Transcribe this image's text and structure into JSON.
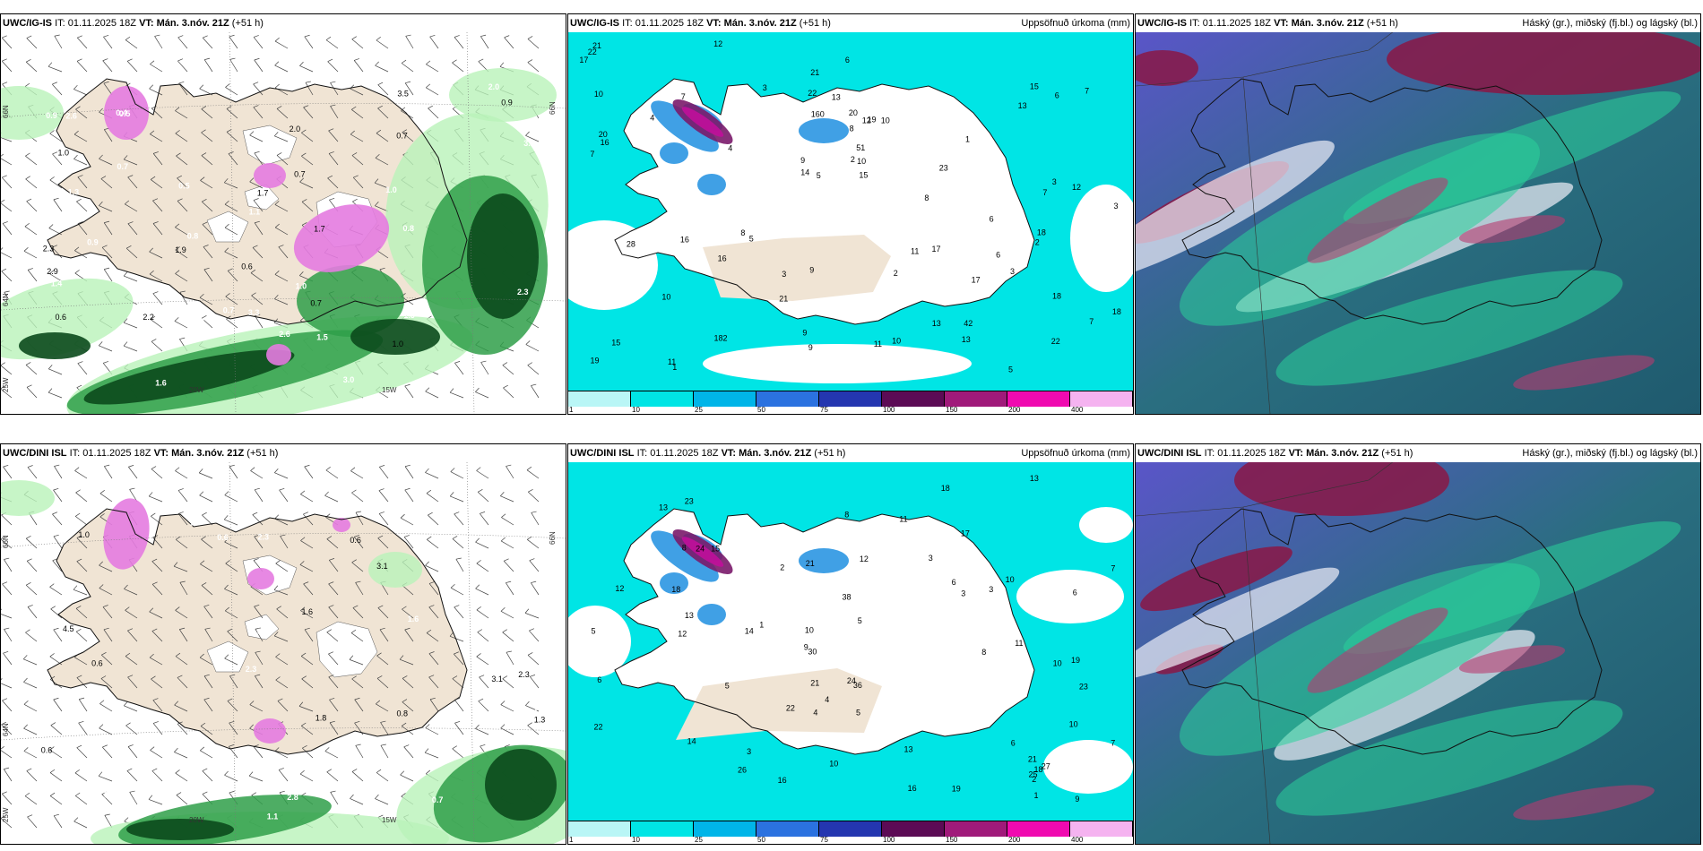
{
  "panels": [
    {
      "model": "UWC/IG-IS",
      "it_label": "IT:",
      "it": "01.11.2025 18Z",
      "vt_label": "VT:",
      "vt": "Mán. 3.nóv. 21Z",
      "lead": "(+51 h)",
      "right_title": "",
      "type": "wind-precip",
      "axis_labels": [
        "20W",
        "15W",
        "66N",
        "64N",
        "25W",
        "66N"
      ],
      "values": [
        "0.7",
        "0.6",
        "0.7",
        "2.0",
        "2.6",
        "1.0",
        "0.9",
        "0.6",
        "0.9",
        "0.7",
        "1.3",
        "0.5",
        "1.6",
        "1.0",
        "2.3",
        "1.7",
        "1.5",
        "0.8",
        "0.7",
        "2.0",
        "1.3",
        "0.5",
        "3.2",
        "2.2",
        "1.1",
        "2.9",
        "3.3",
        "1.0",
        "0.8",
        "3.0",
        "2.9",
        "2.6",
        "1.4",
        "3.5",
        "0.7",
        "0.9",
        "1.9",
        "2.3",
        "1.7",
        "2.2",
        "1.0",
        "0.4"
      ]
    },
    {
      "model": "UWC/IG-IS",
      "it_label": "IT:",
      "it": "01.11.2025 18Z",
      "vt_label": "VT:",
      "vt": "Mán. 3.nóv. 21Z",
      "lead": "(+51 h)",
      "right_title": "Uppsöfnuð úrkoma (mm)",
      "type": "accum",
      "values": [
        "14",
        "22",
        "21",
        "20",
        "18",
        "21",
        "10",
        "182",
        "16",
        "18",
        "160",
        "19",
        "20",
        "42",
        "17",
        "28",
        "22",
        "19",
        "13",
        "12",
        "7",
        "8",
        "6",
        "10",
        "12",
        "51",
        "17",
        "3",
        "8",
        "6",
        "6",
        "7",
        "7",
        "18",
        "15",
        "15",
        "16",
        "11",
        "10",
        "11",
        "13",
        "9",
        "4",
        "5",
        "7",
        "9",
        "2",
        "1",
        "3",
        "3",
        "1",
        "5",
        "4",
        "3",
        "2",
        "3",
        "6",
        "2",
        "5",
        "7",
        "9",
        "10",
        "13",
        "17",
        "16",
        "12",
        "11",
        "10",
        "15",
        "21",
        "13",
        "9",
        "8",
        "22",
        "23"
      ]
    },
    {
      "model": "UWC/IG-IS",
      "it_label": "IT:",
      "it": "01.11.2025 18Z",
      "vt_label": "VT:",
      "vt": "Mán. 3.nóv. 21Z",
      "lead": "(+51 h)",
      "right_title": "Háský (gr.), miðský (fj.bl.) og lágský (bl.)",
      "type": "cloud"
    },
    {
      "model": "UWC/DINI ISL",
      "it_label": "IT:",
      "it": "01.11.2025 18Z",
      "vt_label": "VT:",
      "vt": "Mán. 3.nóv. 21Z",
      "lead": "(+51 h)",
      "right_title": "",
      "type": "wind-precip",
      "axis_labels": [
        "20W",
        "15W",
        "66N",
        "64N",
        "25W",
        "66N"
      ],
      "values": [
        "0.6",
        "0.6",
        "0.6",
        "1.6",
        "0.8",
        "0.6",
        "1.0",
        "1.4",
        "3.6",
        "3.1",
        "1.6",
        "2.8",
        "1.1",
        "2.3",
        "0.7",
        "1.3",
        "2.3",
        "1.8",
        "2.0",
        "2.3",
        "4.5",
        "1.3",
        "3.1",
        "1.6",
        "2.3"
      ]
    },
    {
      "model": "UWC/DINI ISL",
      "it_label": "IT:",
      "it": "01.11.2025 18Z",
      "vt_label": "VT:",
      "vt": "Mán. 3.nóv. 21Z",
      "lead": "(+51 h)",
      "right_title": "Uppsöfnuð úrkoma (mm)",
      "type": "accum",
      "values": [
        "21",
        "18",
        "22",
        "19",
        "15",
        "23",
        "14",
        "30",
        "19",
        "16",
        "17",
        "18",
        "21",
        "10",
        "8",
        "6",
        "10",
        "13",
        "25",
        "38",
        "24",
        "27",
        "36",
        "22",
        "23",
        "26",
        "21",
        "14",
        "12",
        "6",
        "13",
        "5",
        "8",
        "12",
        "16",
        "18",
        "24",
        "11",
        "12",
        "10",
        "4",
        "5",
        "3",
        "2",
        "1",
        "3",
        "1",
        "2",
        "3",
        "5",
        "4",
        "6",
        "7",
        "9",
        "13",
        "10",
        "11",
        "8",
        "5",
        "3",
        "7",
        "6",
        "9",
        "10",
        "13"
      ]
    },
    {
      "model": "UWC/DINI ISL",
      "it_label": "IT:",
      "it": "01.11.2025 18Z",
      "vt_label": "VT:",
      "vt": "Mán. 3.nóv. 21Z",
      "lead": "(+51 h)",
      "right_title": "Háský (gr.), miðský (fj.bl.) og lágský (bl.)",
      "type": "cloud"
    }
  ],
  "colorbar": {
    "ticks": [
      "1",
      "10",
      "25",
      "50",
      "75",
      "100",
      "150",
      "200",
      "400"
    ],
    "colors": [
      "#b9f6f6",
      "#00e5e5",
      "#00b5e8",
      "#2b72e0",
      "#2436b0",
      "#5c0b55",
      "#a01a7a",
      "#f00ab0",
      "#f5b3f0"
    ]
  },
  "colors": {
    "land": "#f0e4d4",
    "precip_light": "#b9f2b9",
    "precip_mid": "#2f9f49",
    "precip_dark": "#0b4a1c",
    "precip_heavy": "#e47be0",
    "accum_base": "#00e5e5",
    "cloud_dark": "#1f5a6e"
  }
}
